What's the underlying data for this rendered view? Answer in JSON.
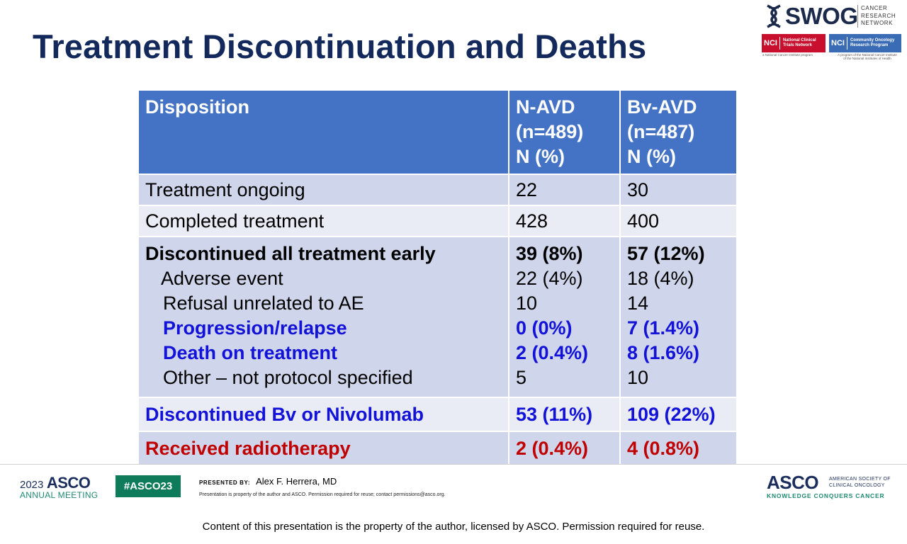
{
  "title": "Treatment Discontinuation and Deaths",
  "logos": {
    "swog": "SWOG",
    "swog_sub": [
      "CANCER",
      "RESEARCH",
      "NETWORK"
    ],
    "nci_ctn": {
      "mark": "NCI",
      "text": [
        "National Clinical",
        "Trials Network"
      ],
      "caption": "a National Cancer Institute program"
    },
    "nci_corp": {
      "mark": "NCI",
      "text": [
        "Community Oncology",
        "Research Program"
      ],
      "caption": [
        "A program of the National Cancer Institute",
        "of the National Institutes of Health"
      ]
    }
  },
  "table": {
    "header": {
      "col1": "Disposition",
      "col2": [
        "N-AVD",
        "(n=489)",
        "N (%)"
      ],
      "col3": [
        "Bv-AVD",
        "(n=487)",
        "N (%)"
      ]
    },
    "rows": {
      "ongoing": {
        "label": "Treatment ongoing",
        "navd": "22",
        "bvavd": "30"
      },
      "completed": {
        "label": "Completed treatment",
        "navd": "428",
        "bvavd": "400"
      },
      "discontinued": {
        "label": "Discontinued all treatment early",
        "navd": "39 (8%)",
        "bvavd": "57 (12%)",
        "sub": {
          "ae": {
            "label": "Adverse event",
            "navd": "22 (4%)",
            "bvavd": "18 (4%)"
          },
          "refusal": {
            "label": "Refusal unrelated to AE",
            "navd": "10",
            "bvavd": "14"
          },
          "progression": {
            "label": "Progression/relapse",
            "navd": "0 (0%)",
            "bvavd": "7 (1.4%)"
          },
          "death": {
            "label": "Death on treatment",
            "navd": "2 (0.4%)",
            "bvavd": "8 (1.6%)"
          },
          "other": {
            "label": "Other – not protocol specified",
            "navd": "5",
            "bvavd": "10"
          }
        }
      },
      "disc_bv_nivo": {
        "label": "Discontinued Bv or Nivolumab",
        "navd": "53 (11%)",
        "bvavd": "109 (22%)"
      },
      "radiotherapy": {
        "label": "Received radiotherapy",
        "navd": "2 (0.4%)",
        "bvavd": "4 (0.8%)"
      }
    }
  },
  "footer": {
    "meeting_year": "2023",
    "meeting_asco": "ASCO",
    "meeting_sub": "ANNUAL MEETING",
    "hashtag": "#ASCO23",
    "presented_by": "PRESENTED BY:",
    "presenter": "Alex F. Herrera, MD",
    "presentation_note": "Presentation is property of the author and ASCO. Permission required for reuse; contact permissions@asco.org.",
    "asco": "ASCO",
    "asco_name": [
      "AMERICAN SOCIETY OF",
      "CLINICAL ONCOLOGY"
    ],
    "asco_tagline": "KNOWLEDGE CONQUERS CANCER"
  },
  "bottom_note": "Content of this presentation is the property of the author, licensed by ASCO. Permission required for reuse.",
  "colors": {
    "title": "#13285b",
    "header_bg": "#4472c4",
    "row_light": "#e9ecf5",
    "row_dark": "#cfd5ea",
    "blue_text": "#1212d8",
    "red_text": "#c00000",
    "asco_green": "#0e7c5a"
  }
}
